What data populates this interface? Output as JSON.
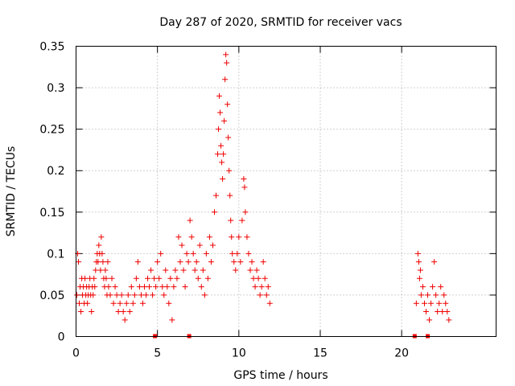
{
  "chart_data": {
    "type": "scatter",
    "title": "Day 287 of 2020, SRMTID for receiver vacs",
    "xlabel": "GPS time / hours",
    "ylabel": "SRMTID / TECUs",
    "xlim": [
      0,
      25.8
    ],
    "ylim": [
      0,
      0.35
    ],
    "grid": true,
    "marker": "plus",
    "color": "#ee0000",
    "x_ticks": [
      0,
      5,
      10,
      15,
      20
    ],
    "x_tick_labels": [
      "0",
      "5",
      "10",
      "15",
      "20"
    ],
    "y_ticks": [
      0,
      0.05,
      0.1,
      0.15,
      0.2,
      0.25,
      0.3,
      0.35
    ],
    "y_tick_labels": [
      "0",
      "0.05",
      "0.1",
      "0.15",
      "0.2",
      "0.25",
      "0.3",
      "0.35"
    ],
    "gap_markers_x": [
      4.85,
      6.95,
      20.8,
      21.6
    ],
    "series": [
      {
        "name": "SRMTID",
        "points": [
          [
            0.05,
            0.05
          ],
          [
            0.1,
            0.1
          ],
          [
            0.15,
            0.09
          ],
          [
            0.2,
            0.04
          ],
          [
            0.25,
            0.06
          ],
          [
            0.3,
            0.03
          ],
          [
            0.35,
            0.07
          ],
          [
            0.4,
            0.05
          ],
          [
            0.45,
            0.06
          ],
          [
            0.5,
            0.04
          ],
          [
            0.55,
            0.07
          ],
          [
            0.6,
            0.05
          ],
          [
            0.65,
            0.06
          ],
          [
            0.7,
            0.04
          ],
          [
            0.75,
            0.05
          ],
          [
            0.8,
            0.06
          ],
          [
            0.85,
            0.07
          ],
          [
            0.9,
            0.05
          ],
          [
            0.95,
            0.03
          ],
          [
            1.0,
            0.06
          ],
          [
            1.05,
            0.05
          ],
          [
            1.1,
            0.07
          ],
          [
            1.15,
            0.06
          ],
          [
            1.2,
            0.08
          ],
          [
            1.25,
            0.09
          ],
          [
            1.3,
            0.1
          ],
          [
            1.35,
            0.09
          ],
          [
            1.4,
            0.11
          ],
          [
            1.45,
            0.1
          ],
          [
            1.5,
            0.08
          ],
          [
            1.55,
            0.12
          ],
          [
            1.6,
            0.1
          ],
          [
            1.65,
            0.09
          ],
          [
            1.7,
            0.07
          ],
          [
            1.75,
            0.06
          ],
          [
            1.8,
            0.08
          ],
          [
            1.85,
            0.07
          ],
          [
            1.9,
            0.05
          ],
          [
            1.95,
            0.09
          ],
          [
            2.0,
            0.06
          ],
          [
            2.1,
            0.05
          ],
          [
            2.2,
            0.07
          ],
          [
            2.3,
            0.04
          ],
          [
            2.4,
            0.06
          ],
          [
            2.5,
            0.05
          ],
          [
            2.6,
            0.03
          ],
          [
            2.7,
            0.04
          ],
          [
            2.8,
            0.05
          ],
          [
            2.9,
            0.03
          ],
          [
            3.0,
            0.02
          ],
          [
            3.1,
            0.04
          ],
          [
            3.2,
            0.05
          ],
          [
            3.3,
            0.03
          ],
          [
            3.4,
            0.06
          ],
          [
            3.5,
            0.04
          ],
          [
            3.6,
            0.05
          ],
          [
            3.7,
            0.07
          ],
          [
            3.8,
            0.09
          ],
          [
            3.9,
            0.06
          ],
          [
            4.0,
            0.05
          ],
          [
            4.1,
            0.04
          ],
          [
            4.2,
            0.06
          ],
          [
            4.3,
            0.05
          ],
          [
            4.4,
            0.07
          ],
          [
            4.5,
            0.06
          ],
          [
            4.6,
            0.08
          ],
          [
            4.7,
            0.05
          ],
          [
            4.8,
            0.07
          ],
          [
            4.9,
            0.06
          ],
          [
            5.0,
            0.09
          ],
          [
            5.1,
            0.07
          ],
          [
            5.2,
            0.1
          ],
          [
            5.3,
            0.06
          ],
          [
            5.4,
            0.05
          ],
          [
            5.5,
            0.08
          ],
          [
            5.6,
            0.06
          ],
          [
            5.7,
            0.04
          ],
          [
            5.8,
            0.07
          ],
          [
            5.9,
            0.02
          ],
          [
            6.0,
            0.06
          ],
          [
            6.1,
            0.08
          ],
          [
            6.2,
            0.07
          ],
          [
            6.3,
            0.12
          ],
          [
            6.4,
            0.09
          ],
          [
            6.5,
            0.11
          ],
          [
            6.6,
            0.08
          ],
          [
            6.7,
            0.06
          ],
          [
            6.8,
            0.1
          ],
          [
            6.9,
            0.09
          ],
          [
            7.0,
            0.14
          ],
          [
            7.1,
            0.12
          ],
          [
            7.2,
            0.1
          ],
          [
            7.3,
            0.08
          ],
          [
            7.4,
            0.09
          ],
          [
            7.5,
            0.07
          ],
          [
            7.6,
            0.11
          ],
          [
            7.7,
            0.06
          ],
          [
            7.8,
            0.08
          ],
          [
            7.9,
            0.05
          ],
          [
            8.0,
            0.1
          ],
          [
            8.1,
            0.07
          ],
          [
            8.2,
            0.12
          ],
          [
            8.3,
            0.09
          ],
          [
            8.4,
            0.11
          ],
          [
            8.5,
            0.15
          ],
          [
            8.6,
            0.17
          ],
          [
            8.7,
            0.22
          ],
          [
            8.75,
            0.25
          ],
          [
            8.8,
            0.29
          ],
          [
            8.85,
            0.27
          ],
          [
            8.9,
            0.23
          ],
          [
            8.95,
            0.21
          ],
          [
            9.0,
            0.19
          ],
          [
            9.05,
            0.22
          ],
          [
            9.1,
            0.26
          ],
          [
            9.15,
            0.31
          ],
          [
            9.2,
            0.34
          ],
          [
            9.25,
            0.33
          ],
          [
            9.3,
            0.28
          ],
          [
            9.35,
            0.24
          ],
          [
            9.4,
            0.2
          ],
          [
            9.45,
            0.17
          ],
          [
            9.5,
            0.14
          ],
          [
            9.55,
            0.12
          ],
          [
            9.6,
            0.1
          ],
          [
            9.7,
            0.09
          ],
          [
            9.8,
            0.08
          ],
          [
            9.9,
            0.1
          ],
          [
            10.0,
            0.12
          ],
          [
            10.1,
            0.09
          ],
          [
            10.2,
            0.14
          ],
          [
            10.3,
            0.19
          ],
          [
            10.35,
            0.18
          ],
          [
            10.4,
            0.15
          ],
          [
            10.5,
            0.12
          ],
          [
            10.6,
            0.1
          ],
          [
            10.7,
            0.08
          ],
          [
            10.8,
            0.09
          ],
          [
            10.9,
            0.07
          ],
          [
            11.0,
            0.06
          ],
          [
            11.1,
            0.08
          ],
          [
            11.2,
            0.07
          ],
          [
            11.3,
            0.05
          ],
          [
            11.4,
            0.06
          ],
          [
            11.5,
            0.09
          ],
          [
            11.6,
            0.07
          ],
          [
            11.7,
            0.05
          ],
          [
            11.8,
            0.06
          ],
          [
            11.9,
            0.04
          ],
          [
            20.9,
            0.04
          ],
          [
            21.0,
            0.1
          ],
          [
            21.05,
            0.09
          ],
          [
            21.1,
            0.07
          ],
          [
            21.15,
            0.08
          ],
          [
            21.2,
            0.05
          ],
          [
            21.3,
            0.06
          ],
          [
            21.4,
            0.04
          ],
          [
            21.5,
            0.03
          ],
          [
            21.6,
            0.05
          ],
          [
            21.7,
            0.02
          ],
          [
            21.8,
            0.04
          ],
          [
            21.9,
            0.06
          ],
          [
            22.0,
            0.09
          ],
          [
            22.1,
            0.05
          ],
          [
            22.2,
            0.03
          ],
          [
            22.3,
            0.04
          ],
          [
            22.4,
            0.06
          ],
          [
            22.5,
            0.03
          ],
          [
            22.6,
            0.05
          ],
          [
            22.7,
            0.04
          ],
          [
            22.8,
            0.03
          ],
          [
            22.9,
            0.02
          ]
        ]
      }
    ]
  }
}
